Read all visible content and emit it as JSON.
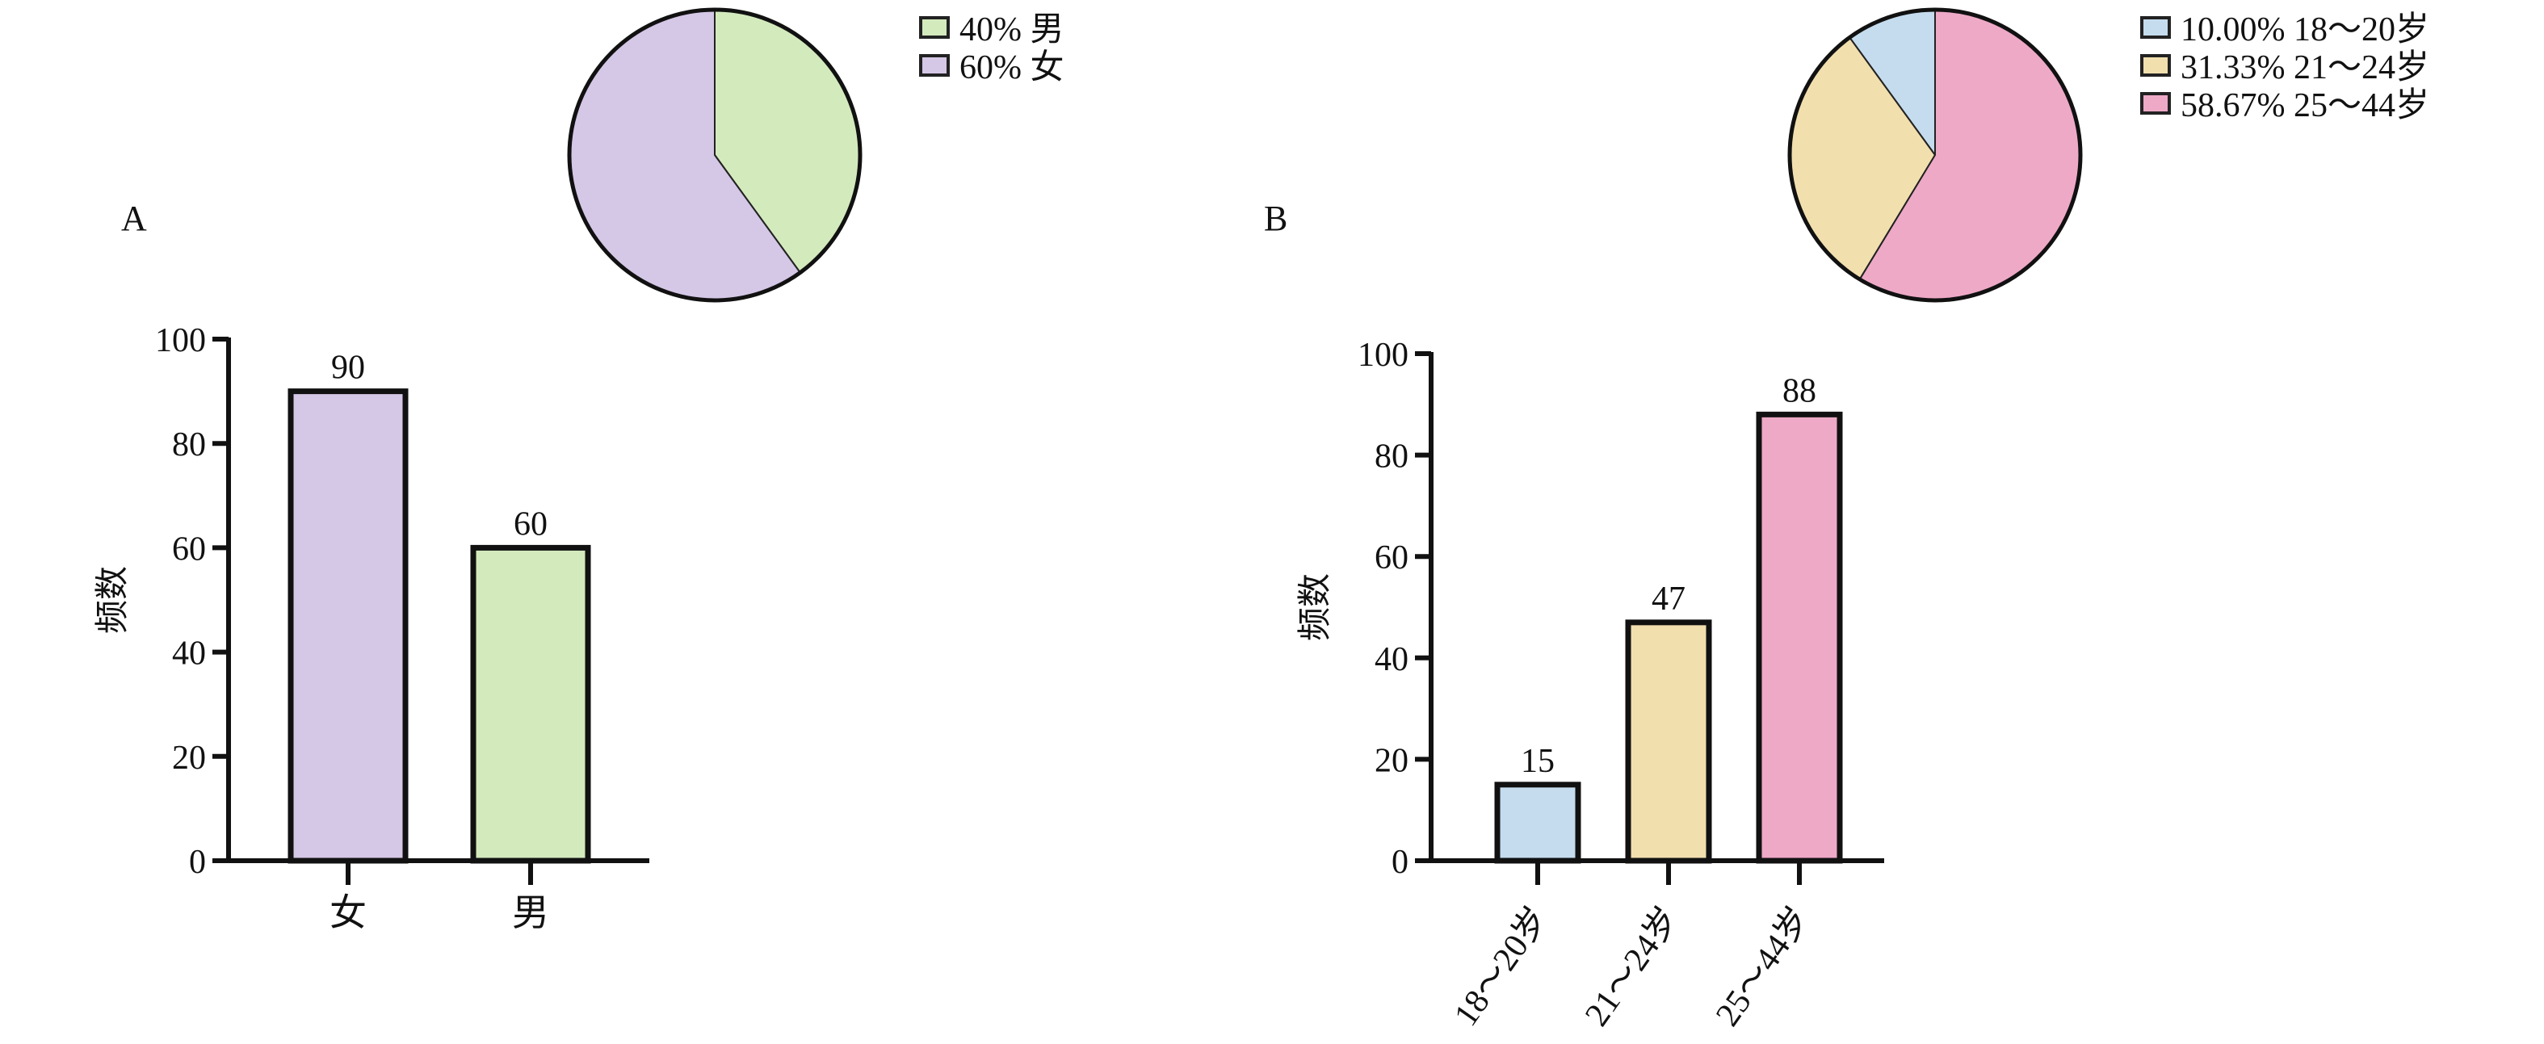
{
  "panels": [
    {
      "label": "A"
    },
    {
      "label": "B"
    }
  ],
  "chart_data": [
    {
      "type": "pie",
      "panel": "A",
      "title": "",
      "slices": [
        {
          "label": "男",
          "value": 40,
          "legend": "40% 男",
          "color": "#d3eabd"
        },
        {
          "label": "女",
          "value": 60,
          "legend": "60% 女",
          "color": "#d5c7e6"
        }
      ],
      "legend_position": "top-right"
    },
    {
      "type": "bar",
      "panel": "A",
      "title": "",
      "categories": [
        "女",
        "男"
      ],
      "values": [
        90,
        60
      ],
      "data_labels": [
        "90",
        "60"
      ],
      "colors": [
        "#d5c7e6",
        "#d3eabd"
      ],
      "xlabel": "",
      "ylabel": "频数",
      "ylim": [
        0,
        100
      ],
      "yticks": [
        0,
        20,
        40,
        60,
        80,
        100
      ],
      "ytick_labels": [
        "0",
        "20",
        "40",
        "60",
        "80",
        "100"
      ],
      "grid": false
    },
    {
      "type": "pie",
      "panel": "B",
      "title": "",
      "slices": [
        {
          "label": "18～20岁",
          "value": 10.0,
          "legend": "10.00% 18～20岁",
          "color": "#c5dcee"
        },
        {
          "label": "21～24岁",
          "value": 31.33,
          "legend": "31.33% 21～24岁",
          "color": "#f2dfae"
        },
        {
          "label": "25～44岁",
          "value": 58.67,
          "legend": "58.67% 25～44岁",
          "color": "#eea9c7"
        }
      ],
      "legend_position": "top-right"
    },
    {
      "type": "bar",
      "panel": "B",
      "title": "",
      "categories": [
        "18～20岁",
        "21～24岁",
        "25～44岁"
      ],
      "values": [
        15,
        47,
        88
      ],
      "data_labels": [
        "15",
        "47",
        "88"
      ],
      "colors": [
        "#c5dcee",
        "#f2dfae",
        "#eea9c7"
      ],
      "xlabel": "",
      "ylabel": "频数",
      "ylim": [
        0,
        100
      ],
      "yticks": [
        0,
        20,
        40,
        60,
        80,
        100
      ],
      "ytick_labels": [
        "0",
        "20",
        "40",
        "60",
        "80",
        "100"
      ],
      "grid": false
    }
  ]
}
